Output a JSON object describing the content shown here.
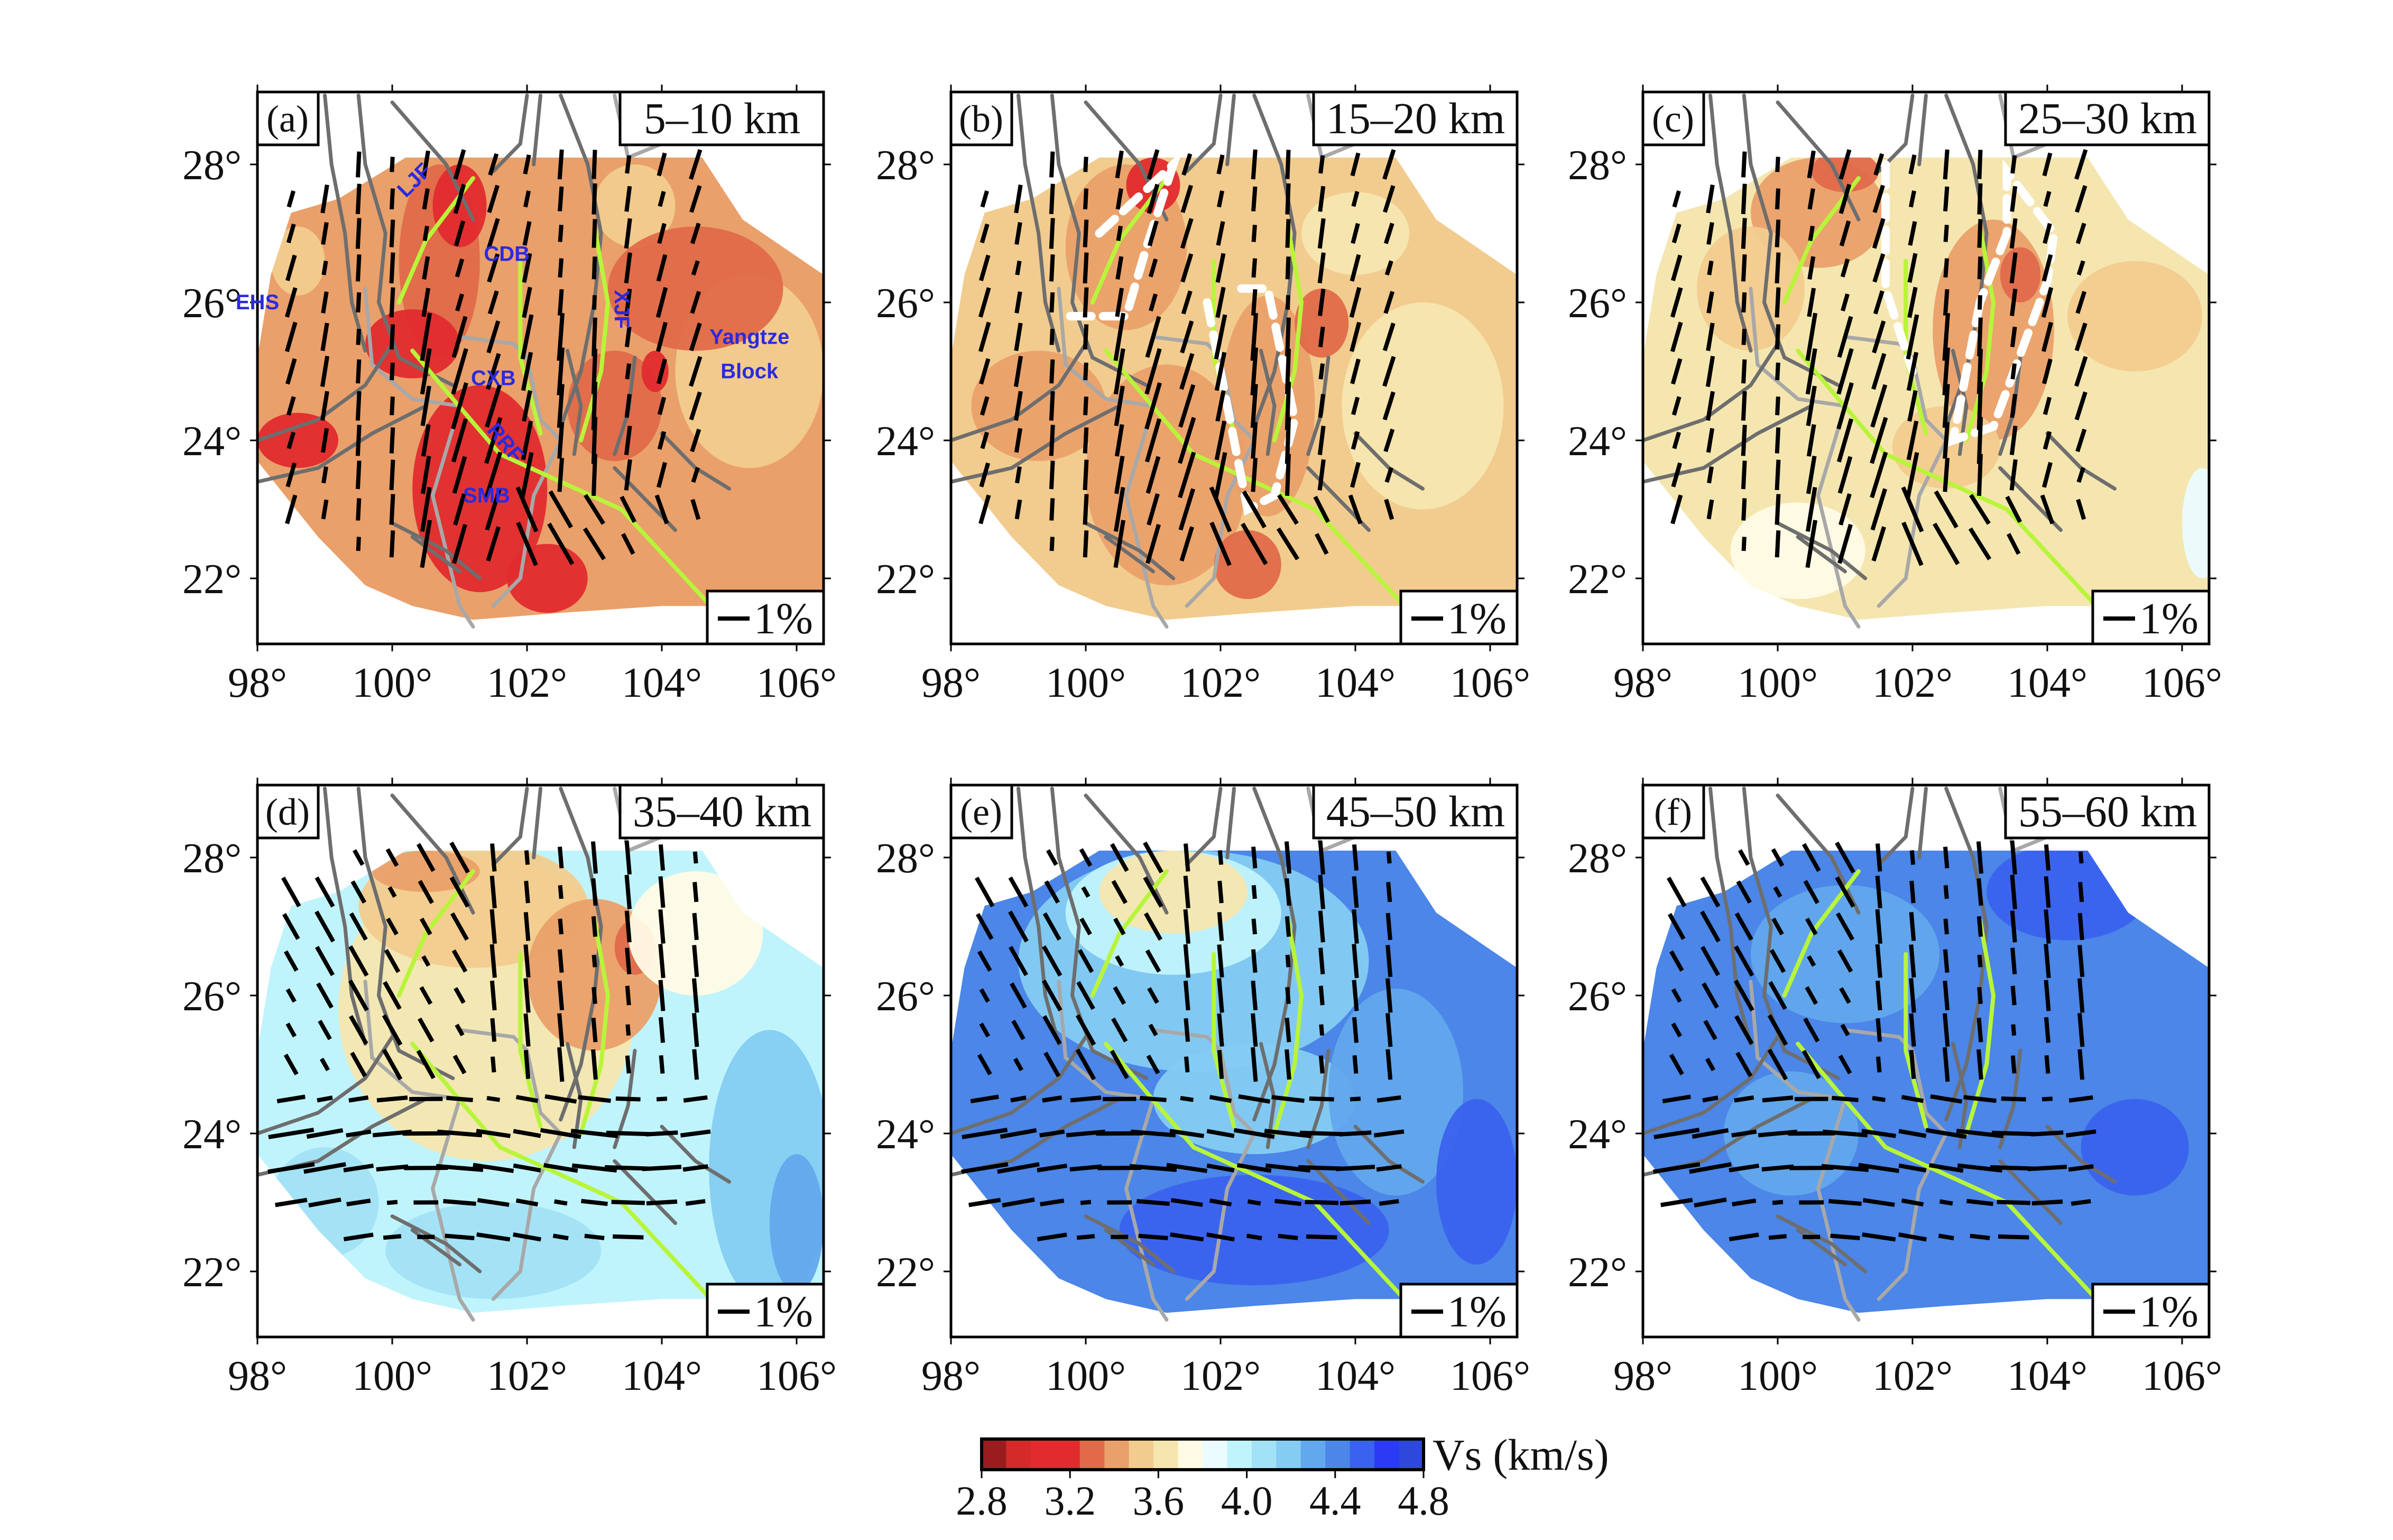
{
  "chart_data": {
    "type": "heatmap",
    "panels": [
      {
        "label": "(a)",
        "depth": "5–10 km",
        "base": "#eaa06a",
        "blobs": [
          [
            100.7,
            26.6,
            0.6,
            1.4,
            "#e06a4a"
          ],
          [
            101.0,
            27.4,
            0.4,
            0.6,
            "#e22b2e"
          ],
          [
            101.3,
            23.3,
            1.0,
            1.5,
            "#e22b2e"
          ],
          [
            100.3,
            25.4,
            0.7,
            0.5,
            "#e22b2e"
          ],
          [
            102.3,
            22.0,
            0.6,
            0.5,
            "#e22b2e"
          ],
          [
            103.3,
            24.5,
            0.7,
            0.8,
            "#e06a4a"
          ],
          [
            103.9,
            25.0,
            0.2,
            0.3,
            "#e22b2e"
          ],
          [
            105.3,
            25.0,
            1.1,
            1.4,
            "#f2cc8e"
          ],
          [
            103.6,
            27.4,
            0.6,
            0.6,
            "#f2cc8e"
          ],
          [
            104.5,
            26.2,
            1.3,
            0.9,
            "#e06a4a"
          ],
          [
            98.6,
            24.0,
            0.6,
            0.4,
            "#e22b2e"
          ],
          [
            98.6,
            26.6,
            0.4,
            0.5,
            "#f2cc8e"
          ]
        ],
        "faults_green": true
      },
      {
        "label": "(b)",
        "depth": "15–20 km",
        "base": "#f2cc8e",
        "blobs": [
          [
            100.6,
            26.8,
            0.9,
            1.2,
            "#eaa06a"
          ],
          [
            101.0,
            27.7,
            0.4,
            0.4,
            "#e22b2e"
          ],
          [
            101.2,
            23.5,
            1.2,
            1.6,
            "#eaa06a"
          ],
          [
            102.7,
            24.5,
            0.7,
            1.6,
            "#eaa06a"
          ],
          [
            103.5,
            25.7,
            0.4,
            0.5,
            "#e06a4a"
          ],
          [
            102.4,
            22.2,
            0.5,
            0.5,
            "#e06a4a"
          ],
          [
            99.3,
            24.5,
            1.0,
            0.8,
            "#eaa06a"
          ],
          [
            105.0,
            24.5,
            1.2,
            1.5,
            "#f5e6b0"
          ],
          [
            104.0,
            27.0,
            0.8,
            0.6,
            "#f5e6b0"
          ]
        ],
        "dashed_outline": true
      },
      {
        "label": "(c)",
        "depth": "25–30 km",
        "base": "#f5e6b0",
        "blobs": [
          [
            100.6,
            27.3,
            1.0,
            0.8,
            "#eaa06a"
          ],
          [
            101.0,
            27.9,
            0.5,
            0.3,
            "#e06a4a"
          ],
          [
            103.2,
            25.6,
            0.9,
            1.6,
            "#eaa06a"
          ],
          [
            103.6,
            26.4,
            0.3,
            0.4,
            "#e06a4a"
          ],
          [
            99.6,
            26.2,
            0.8,
            0.9,
            "#f2cc8e"
          ],
          [
            102.5,
            23.9,
            0.8,
            0.6,
            "#f2cc8e"
          ],
          [
            105.3,
            25.8,
            1.0,
            0.8,
            "#f2cc8e"
          ],
          [
            106.3,
            22.8,
            0.3,
            0.8,
            "#eafcff"
          ],
          [
            100.3,
            22.4,
            1.0,
            0.7,
            "#fffbe6"
          ]
        ],
        "dashed_outline": true
      },
      {
        "label": "(d)",
        "depth": "35–40 km",
        "base": "#c0f4fc",
        "blobs": [
          [
            101.4,
            25.8,
            2.2,
            2.2,
            "#f5e6b0"
          ],
          [
            101.2,
            27.3,
            1.7,
            0.9,
            "#f2cc8e"
          ],
          [
            103.0,
            26.3,
            1.0,
            1.1,
            "#eaa06a"
          ],
          [
            103.6,
            26.7,
            0.3,
            0.4,
            "#e06a4a"
          ],
          [
            100.5,
            27.8,
            0.8,
            0.3,
            "#eaa06a"
          ],
          [
            104.5,
            26.9,
            1.0,
            0.9,
            "#fffbe6"
          ],
          [
            105.6,
            23.5,
            0.9,
            2.0,
            "#84ccf2"
          ],
          [
            106.0,
            22.7,
            0.4,
            1.0,
            "#62a8ec"
          ],
          [
            99.0,
            23.0,
            0.8,
            0.8,
            "#a2e2f6"
          ],
          [
            101.5,
            22.3,
            1.6,
            0.7,
            "#a2e2f6"
          ]
        ]
      },
      {
        "label": "(e)",
        "depth": "45–50 km",
        "base": "#4b86e8",
        "blobs": [
          [
            101.6,
            26.5,
            2.6,
            1.6,
            "#84ccf2"
          ],
          [
            101.3,
            27.2,
            1.6,
            0.9,
            "#c0f4fc"
          ],
          [
            101.3,
            27.5,
            1.1,
            0.6,
            "#f5e6b0"
          ],
          [
            102.5,
            24.5,
            1.5,
            0.8,
            "#84ccf2"
          ],
          [
            104.6,
            24.6,
            1.0,
            1.5,
            "#62a8ec"
          ],
          [
            102.5,
            22.6,
            2.0,
            0.8,
            "#3a62ee"
          ],
          [
            105.8,
            23.3,
            0.6,
            1.2,
            "#3a62ee"
          ]
        ]
      },
      {
        "label": "(f)",
        "depth": "55–60 km",
        "base": "#4b86e8",
        "blobs": [
          [
            101.0,
            26.6,
            1.4,
            1.0,
            "#62a8ec"
          ],
          [
            100.2,
            24.0,
            1.0,
            0.9,
            "#62a8ec"
          ],
          [
            104.3,
            27.5,
            1.2,
            0.7,
            "#3a62ee"
          ],
          [
            105.3,
            23.8,
            0.8,
            0.7,
            "#3a62ee"
          ],
          [
            102.5,
            24.3,
            1.1,
            0.6,
            "#4b86e8"
          ]
        ]
      }
    ],
    "xticks": [
      "98°",
      "100°",
      "102°",
      "104°",
      "106°"
    ],
    "xtick_values": [
      98,
      100,
      102,
      104,
      106
    ],
    "yticks": [
      "22°",
      "24°",
      "26°",
      "28°"
    ],
    "ytick_values": [
      22,
      24,
      26,
      28
    ],
    "xlim": [
      98,
      106.4
    ],
    "ylim": [
      21.05,
      29.05
    ],
    "scale_label": "1%",
    "place_labels": [
      {
        "text": "LJF",
        "lon": 100.4,
        "lat": 27.7,
        "rot": -45
      },
      {
        "text": "CDB",
        "lon": 101.7,
        "lat": 26.6,
        "rot": 0
      },
      {
        "text": "EHS",
        "lon": 98.0,
        "lat": 25.9,
        "rot": 0
      },
      {
        "text": "XJF",
        "lon": 103.3,
        "lat": 25.9,
        "rot": 90
      },
      {
        "text": "CXB",
        "lon": 101.5,
        "lat": 24.8,
        "rot": 0
      },
      {
        "text": "RRF",
        "lon": 101.6,
        "lat": 23.9,
        "rot": 50
      },
      {
        "text": "SMB",
        "lon": 101.4,
        "lat": 23.1,
        "rot": 0
      },
      {
        "text": "Yangtze",
        "lon": 105.3,
        "lat": 25.4,
        "rot": 0
      },
      {
        "text": "Block",
        "lon": 105.3,
        "lat": 24.9,
        "rot": 0
      }
    ],
    "colorbar": {
      "label": "Vs (km/s)",
      "ticks": [
        "2.8",
        "3.2",
        "3.6",
        "4.0",
        "4.4",
        "4.8"
      ],
      "range": [
        2.8,
        4.8
      ],
      "colors": [
        "#9b1c1f",
        "#d42a2a",
        "#e22b2e",
        "#e22b2e",
        "#e06a4a",
        "#eaa06a",
        "#f2cc8e",
        "#f5e6b0",
        "#fffbe6",
        "#eafcff",
        "#c0f4fc",
        "#a2e2f6",
        "#84ccf2",
        "#62a8ec",
        "#4b86e8",
        "#3a62ee",
        "#2a3af5",
        "#2e48dc"
      ]
    },
    "fault_color": "#6e6e6e",
    "border_color": "#a8a8a8",
    "green_fault_color": "#b8f53a"
  }
}
